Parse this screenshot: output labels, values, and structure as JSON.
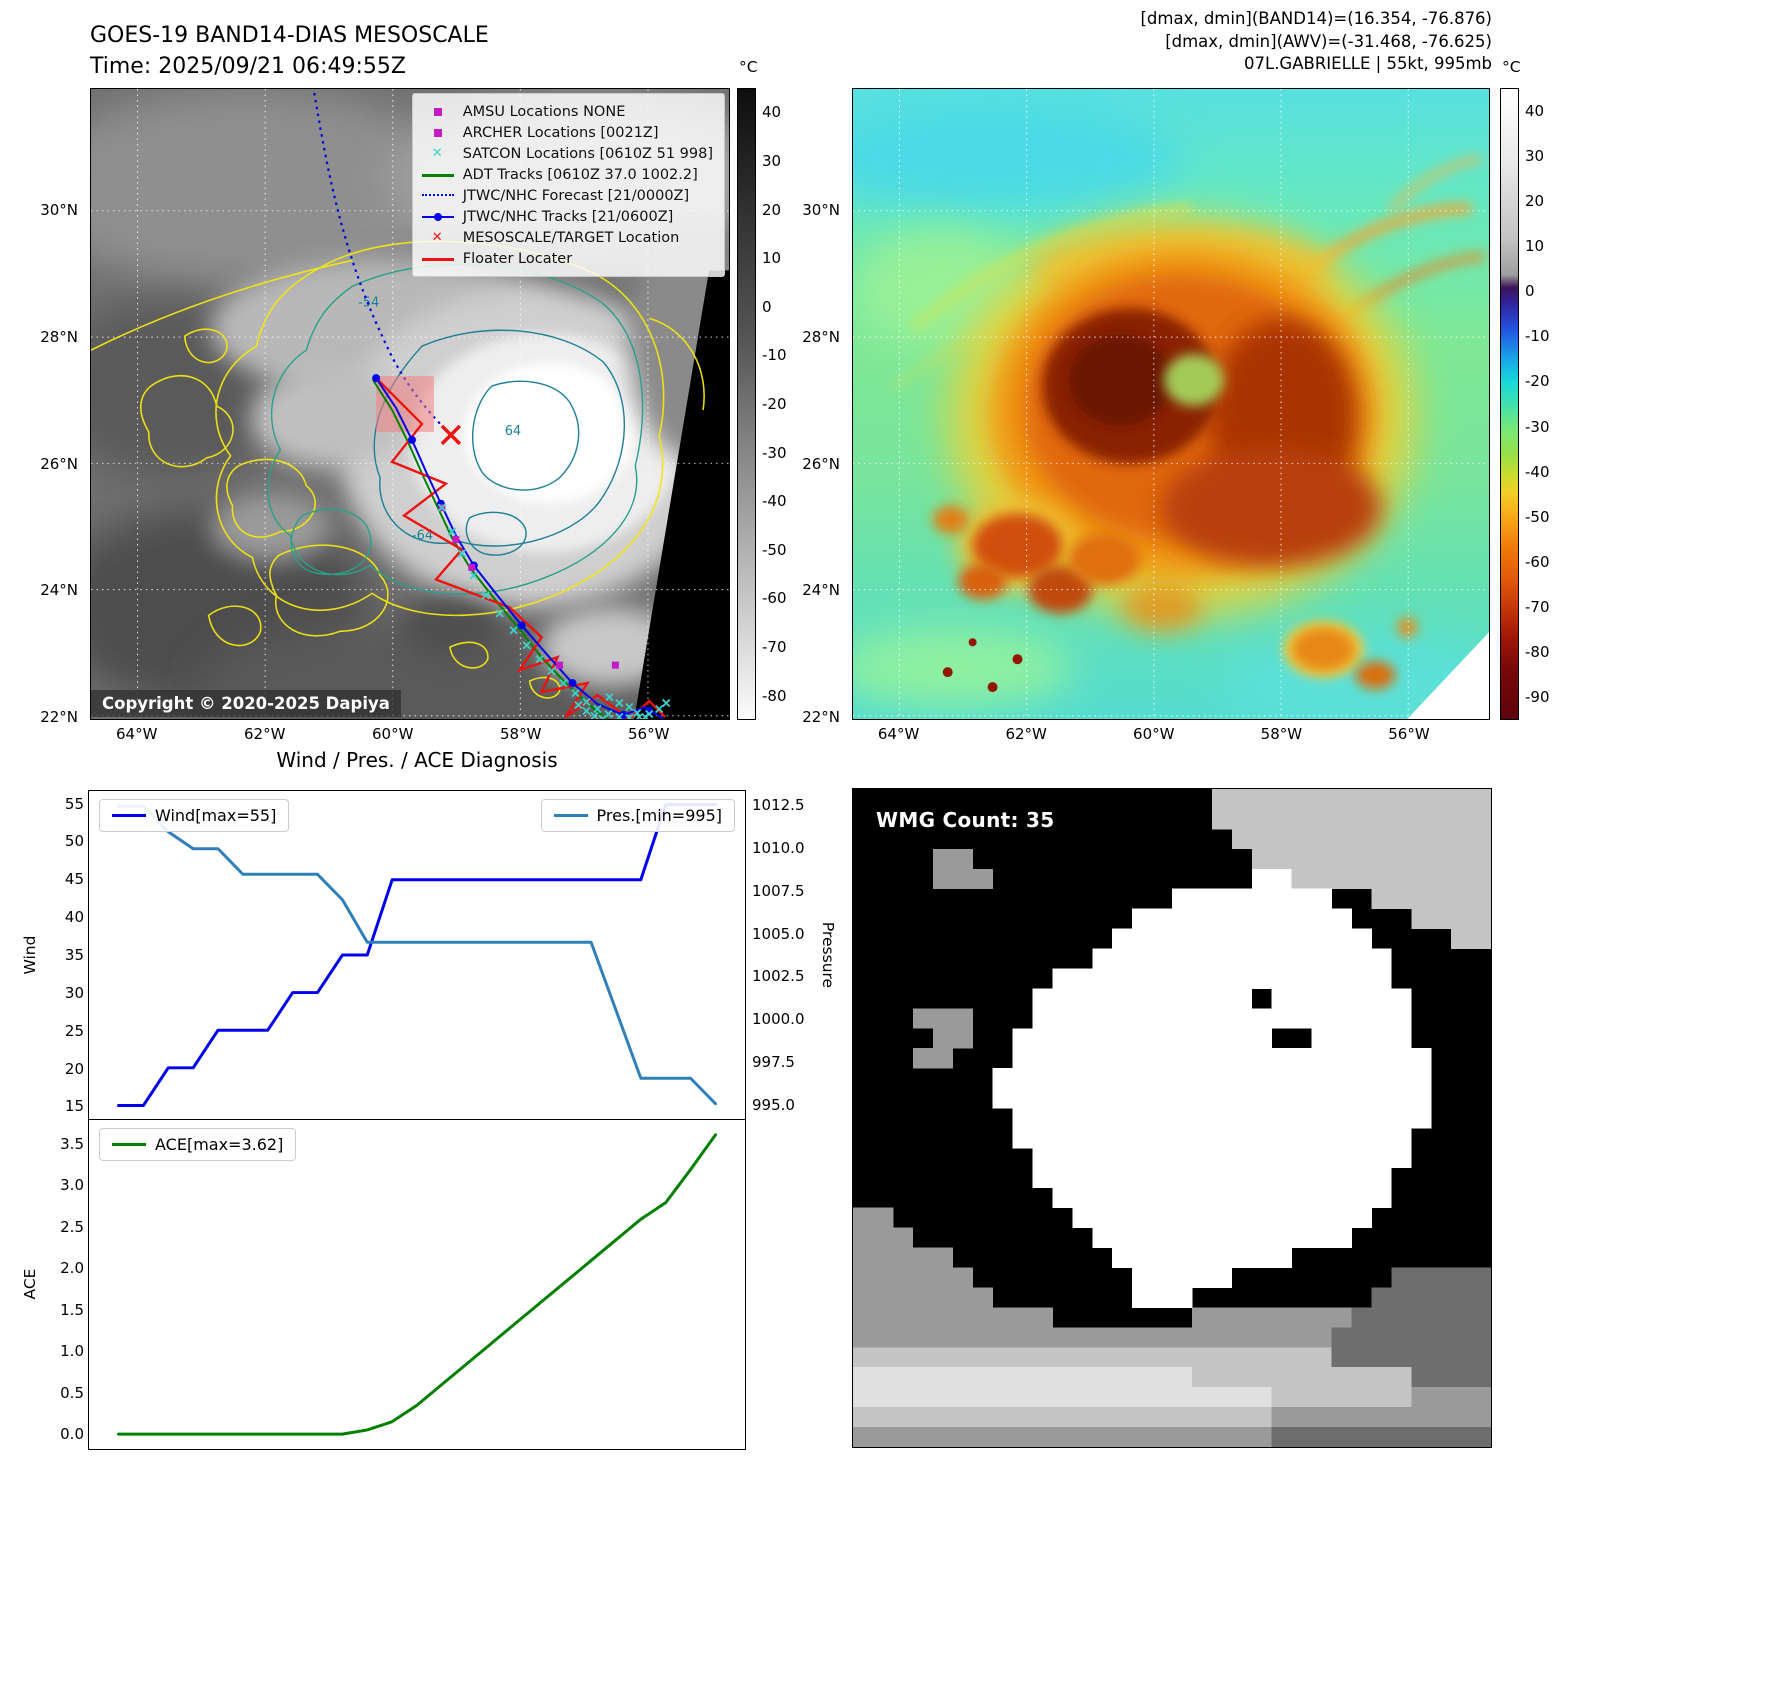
{
  "colors": {
    "wind_line": "#0000ee",
    "pres_line": "#2f7fb8",
    "ace_line": "#008000",
    "track_blue": "#0000ee",
    "track_green": "#008000",
    "track_red": "#ee1111",
    "forecast_blue": "#0000dd",
    "marker_magenta": "#c41ac4",
    "satcon_teal": "#3fd0c9",
    "contour_yellow": "#f2e612",
    "contour_teal": "#2aa186",
    "contour_teal_dark": "#1e7f95",
    "target_red": "#ee1111",
    "mesoscale_box": "#f08080"
  },
  "map_left": {
    "title": "GOES-19 BAND14-DIAS MESOSCALE",
    "subtitle": "Time: 2025/09/21 06:49:55Z",
    "copyright": "Copyright © 2020-2025 Dapiya",
    "legend": [
      {
        "label": "AMSU Locations NONE",
        "marker": "square",
        "color": "#c41ac4"
      },
      {
        "label": "ARCHER Locations [0021Z]",
        "marker": "square",
        "color": "#c41ac4"
      },
      {
        "label": "SATCON Locations [0610Z 51 998]",
        "marker": "x",
        "color": "#3fd0c9"
      },
      {
        "label": "ADT Tracks [0610Z 37.0 1002.2]",
        "marker": "line",
        "color": "#008000"
      },
      {
        "label": "JTWC/NHC Forecast [21/0000Z]",
        "marker": "dotted",
        "color": "#0000dd"
      },
      {
        "label": "JTWC/NHC Tracks [21/0600Z]",
        "marker": "line-dot",
        "color": "#0000ee"
      },
      {
        "label": "MESOSCALE/TARGET Location",
        "marker": "x",
        "color": "#ee1111"
      },
      {
        "label": "Floater Locater",
        "marker": "line",
        "color": "#ee1111"
      }
    ],
    "xticks": [
      "64°W",
      "62°W",
      "60°W",
      "58°W",
      "56°W"
    ],
    "yticks": [
      "30°N",
      "28°N",
      "26°N",
      "24°N",
      "22°N"
    ],
    "contour_labels": [
      "-54",
      "64",
      "-64"
    ],
    "colorbar": {
      "unit": "°C",
      "range": [
        45,
        -85
      ],
      "ticks": [
        "40",
        "30",
        "20",
        "10",
        "0",
        "-10",
        "-20",
        "-30",
        "-40",
        "-50",
        "-60",
        "-70",
        "-80"
      ]
    }
  },
  "map_right": {
    "header_lines": [
      "[dmax, dmin](BAND14)=(16.354, -76.876)",
      "[dmax, dmin](AWV)=(-31.468, -76.625)",
      "07L.GABRIELLE | 55kt, 995mb"
    ],
    "xticks": [
      "64°W",
      "62°W",
      "60°W",
      "58°W",
      "56°W"
    ],
    "yticks": [
      "30°N",
      "28°N",
      "26°N",
      "24°N",
      "22°N"
    ],
    "colorbar": {
      "unit": "°C",
      "range": [
        45,
        -95
      ],
      "ticks": [
        "40",
        "30",
        "20",
        "10",
        "0",
        "-10",
        "-20",
        "-30",
        "-40",
        "-50",
        "-60",
        "-70",
        "-80",
        "-90"
      ]
    }
  },
  "chart_data": [
    {
      "type": "line",
      "title": "Wind / Pres. / ACE Diagnosis",
      "x": [
        0,
        1,
        2,
        3,
        4,
        5,
        6,
        7,
        8,
        9,
        10,
        11,
        12,
        13,
        14,
        15,
        16,
        17,
        18,
        19,
        20,
        21,
        22,
        23,
        24
      ],
      "series": [
        {
          "name": "Wind[max=55]",
          "axis": "left",
          "color_key": "wind_line",
          "values": [
            15,
            15,
            20,
            20,
            25,
            25,
            25,
            30,
            30,
            35,
            35,
            45,
            45,
            45,
            45,
            45,
            45,
            45,
            45,
            45,
            45,
            45,
            55,
            55,
            55
          ]
        },
        {
          "name": "Pres.[min=995]",
          "axis": "right",
          "color_key": "pres_line",
          "values": [
            1012.5,
            1012.5,
            1011,
            1010,
            1010,
            1008.5,
            1008.5,
            1008.5,
            1008.5,
            1007,
            1004.5,
            1004.5,
            1004.5,
            1004.5,
            1004.5,
            1004.5,
            1004.5,
            1004.5,
            1004.5,
            1004.5,
            1000.5,
            996.5,
            996.5,
            996.5,
            995
          ]
        }
      ],
      "left_axis": {
        "label": "Wind",
        "range": [
          13.2,
          56.8
        ],
        "ticks": [
          "15",
          "20",
          "25",
          "30",
          "35",
          "40",
          "45",
          "50",
          "55"
        ]
      },
      "right_axis": {
        "label": "Pressure",
        "range": [
          994.1,
          1013.4
        ],
        "ticks": [
          "995.0",
          "997.5",
          "1000.0",
          "1002.5",
          "1005.0",
          "1007.5",
          "1010.0",
          "1012.5"
        ]
      },
      "grid": false,
      "legend_position": "upper-left / upper-right"
    },
    {
      "type": "line",
      "x": [
        0,
        1,
        2,
        3,
        4,
        5,
        6,
        7,
        8,
        9,
        10,
        11,
        12,
        13,
        14,
        15,
        16,
        17,
        18,
        19,
        20,
        21,
        22,
        23,
        24
      ],
      "series": [
        {
          "name": "ACE[max=3.62]",
          "axis": "left",
          "color_key": "ace_line",
          "values": [
            0,
            0,
            0,
            0,
            0,
            0,
            0,
            0,
            0,
            0,
            0.05,
            0.15,
            0.35,
            0.6,
            0.85,
            1.1,
            1.35,
            1.6,
            1.85,
            2.1,
            2.35,
            2.6,
            2.8,
            3.2,
            3.62
          ]
        }
      ],
      "left_axis": {
        "label": "ACE",
        "range": [
          -0.18,
          3.8
        ],
        "ticks": [
          "0.0",
          "0.5",
          "1.0",
          "1.5",
          "2.0",
          "2.5",
          "3.0",
          "3.5"
        ]
      },
      "grid": false,
      "legend_position": "upper-left"
    }
  ],
  "wmg": {
    "label": "WMG Count: 35",
    "palette": {
      ".": "#000000",
      "w": "#ffffff",
      "g": "#9a9a9a",
      "l": "#c4c4c4",
      "d": "#6e6e6e",
      "e": "#e0e0e0"
    },
    "pixel_rows": [
      "..................llllllllllllll",
      "..................llllllllllllll",
      "...................lllllllllllll",
      "....gg..............llllllllllll",
      "....ggg.............wwllllllllll",
      "................wwwwwwww..llllll",
      "..............wwwwwwwwwww...llll",
      ".............wwwwwwwwwwwww....ll",
      "............wwwwwwwwwwwwwww.....",
      "..........wwwwwwwwwwwwwwwww.....",
      ".........wwwwwwwwwww.wwwwwww....",
      "...ggg...wwwwwwwwwwwwwwwwwww....",
      "....gg..wwwwwwwwwwwww..wwwww....",
      "...gg...wwwwwwwwwwwwwwwwwwwww...",
      ".......wwwwwwwwwwwwwwwwwwwwww...",
      ".......wwwwwwwwwwwwwwwwwwwwww...",
      "........wwwwwwwwwwwwwwwwwwwww...",
      "........wwwwwwwwwwwwwwwwwwww....",
      ".........wwwwwwwwwwwwwwwwwww....",
      ".........wwwwwwwwwwwwwwwwww.....",
      "..........wwwwwwwwwwwwwwwww.....",
      "gg.........wwwwwwwwwwwwwww......",
      "ggg.........wwwwwwwwwwwww.......",
      "ggggg........wwwwwwwww..........",
      "gggggg........wwwww........ddddd",
      "ggggggg.......www.........dddddd",
      "gggggggggg.......ggggggggddddddd",
      "ggggggggggggggggggggggggdddddddd",
      "lllllllllllllllllllllllldddddddd",
      "eeeeeeeeeeeeeeeeellllllllllldddd",
      "eeeeeeeeeeeeeeeeeeeeelllllllgggg",
      "lllllllllllllllllllllggggggggggg",
      "gggggggggggggggggggggddddddddddd"
    ]
  }
}
